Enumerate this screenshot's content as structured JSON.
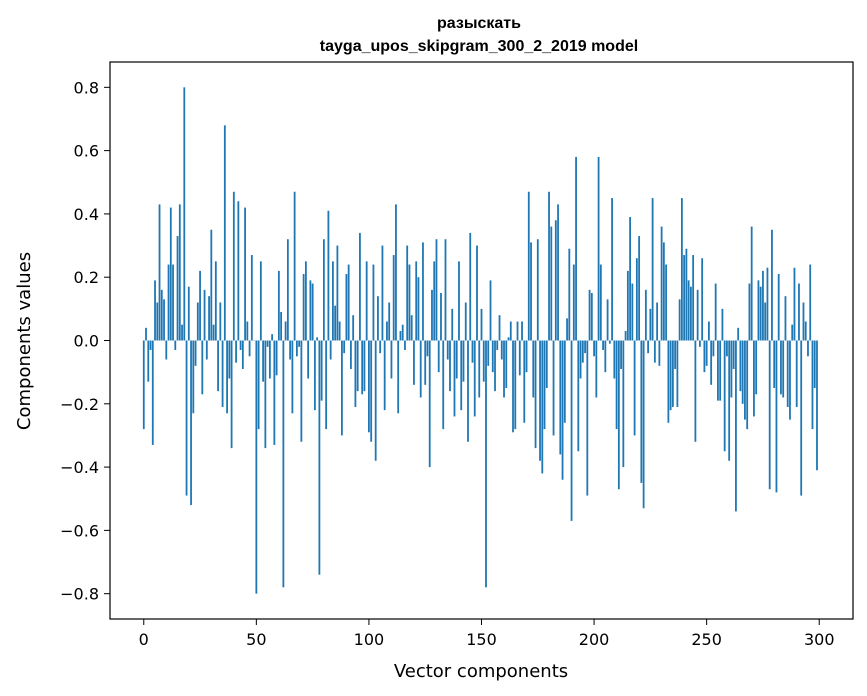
{
  "chart_data": {
    "type": "bar",
    "title": "разыскать",
    "subtitle": "tayga_upos_skipgram_300_2_2019 model",
    "xlabel": "Vector components",
    "ylabel": "Components values",
    "xlim": [
      -15,
      315
    ],
    "ylim": [
      -0.88,
      0.88
    ],
    "xticks": [
      0,
      50,
      100,
      150,
      200,
      250,
      300
    ],
    "xtick_labels": [
      "0",
      "50",
      "100",
      "150",
      "200",
      "250",
      "300"
    ],
    "yticks": [
      -0.8,
      -0.6,
      -0.4,
      -0.2,
      0.0,
      0.2,
      0.4,
      0.6,
      0.8
    ],
    "ytick_labels": [
      "−0.8",
      "−0.6",
      "−0.4",
      "−0.2",
      "0.0",
      "0.2",
      "0.4",
      "0.6",
      "0.8"
    ],
    "grid": false,
    "bar_color": "#1f77b4",
    "values": [
      -0.28,
      0.04,
      -0.13,
      -0.03,
      -0.33,
      0.19,
      0.12,
      0.43,
      0.16,
      0.13,
      -0.06,
      0.24,
      0.42,
      0.24,
      -0.03,
      0.33,
      0.43,
      0.05,
      0.8,
      -0.49,
      0.17,
      -0.52,
      -0.23,
      -0.08,
      0.12,
      0.22,
      -0.17,
      0.16,
      -0.06,
      0.14,
      0.35,
      0.05,
      0.25,
      -0.16,
      0.12,
      -0.21,
      0.68,
      -0.23,
      -0.12,
      -0.34,
      0.47,
      -0.07,
      0.44,
      -0.03,
      -0.09,
      0.42,
      0.06,
      -0.05,
      0.27,
      0.0,
      -0.8,
      -0.28,
      0.25,
      -0.13,
      -0.34,
      -0.02,
      -0.12,
      0.02,
      -0.33,
      -0.11,
      0.22,
      0.09,
      -0.78,
      0.06,
      0.32,
      -0.06,
      -0.23,
      0.47,
      -0.05,
      -0.02,
      -0.32,
      0.21,
      0.25,
      -0.12,
      0.19,
      0.18,
      -0.22,
      0.01,
      -0.74,
      -0.19,
      0.32,
      -0.28,
      0.41,
      -0.06,
      0.25,
      0.11,
      0.3,
      0.06,
      -0.3,
      -0.04,
      0.21,
      0.24,
      -0.09,
      0.08,
      -0.21,
      -0.16,
      0.34,
      -0.17,
      -0.16,
      0.25,
      -0.29,
      -0.32,
      0.24,
      -0.38,
      0.14,
      -0.04,
      0.3,
      -0.22,
      0.06,
      0.12,
      -0.12,
      0.27,
      0.43,
      -0.23,
      0.03,
      0.05,
      -0.03,
      0.3,
      0.24,
      0.08,
      -0.14,
      0.25,
      0.2,
      -0.18,
      0.31,
      -0.14,
      -0.05,
      -0.4,
      0.16,
      0.25,
      0.32,
      -0.1,
      0.15,
      -0.28,
      0.32,
      -0.06,
      -0.16,
      0.1,
      -0.24,
      -0.12,
      0.25,
      -0.22,
      -0.13,
      0.12,
      -0.32,
      0.34,
      -0.07,
      -0.24,
      0.3,
      -0.18,
      0.1,
      -0.13,
      -0.78,
      -0.08,
      0.19,
      -0.1,
      -0.16,
      -0.03,
      0.08,
      -0.06,
      -0.18,
      -0.15,
      0.01,
      0.06,
      -0.29,
      -0.28,
      0.06,
      -0.11,
      0.06,
      -0.26,
      -0.1,
      0.47,
      0.31,
      -0.18,
      -0.34,
      0.32,
      -0.38,
      -0.42,
      -0.28,
      -0.15,
      0.47,
      0.36,
      -0.3,
      0.38,
      0.43,
      -0.36,
      -0.44,
      -0.26,
      0.07,
      0.29,
      -0.57,
      0.24,
      0.58,
      -0.35,
      -0.12,
      -0.07,
      -0.04,
      -0.49,
      0.16,
      0.15,
      -0.05,
      -0.18,
      0.58,
      0.24,
      -0.03,
      -0.1,
      0.13,
      -0.01,
      0.45,
      -0.12,
      -0.28,
      -0.47,
      -0.09,
      -0.4,
      0.03,
      0.22,
      0.39,
      0.18,
      -0.3,
      0.26,
      0.33,
      -0.45,
      -0.53,
      0.16,
      -0.04,
      0.1,
      0.45,
      -0.07,
      0.12,
      -0.08,
      0.36,
      0.31,
      0.24,
      -0.26,
      -0.22,
      -0.21,
      -0.09,
      -0.21,
      0.13,
      0.45,
      0.27,
      0.29,
      0.19,
      0.17,
      0.27,
      -0.32,
      0.16,
      -0.02,
      0.26,
      -0.1,
      -0.08,
      0.06,
      -0.14,
      -0.05,
      0.18,
      -0.19,
      -0.19,
      0.1,
      -0.35,
      -0.05,
      -0.38,
      -0.18,
      -0.09,
      -0.54,
      0.04,
      -0.16,
      -0.2,
      -0.25,
      -0.28,
      0.18,
      0.36,
      -0.24,
      -0.17,
      0.19,
      0.17,
      0.22,
      0.12,
      0.23,
      -0.47,
      0.35,
      -0.15,
      -0.48,
      0.21,
      -0.17,
      -0.18,
      0.14,
      -0.21,
      -0.25,
      0.05,
      0.23,
      -0.21,
      0.18,
      -0.49,
      0.12,
      0.06,
      -0.05,
      0.24,
      -0.28,
      -0.15,
      -0.41
    ]
  }
}
